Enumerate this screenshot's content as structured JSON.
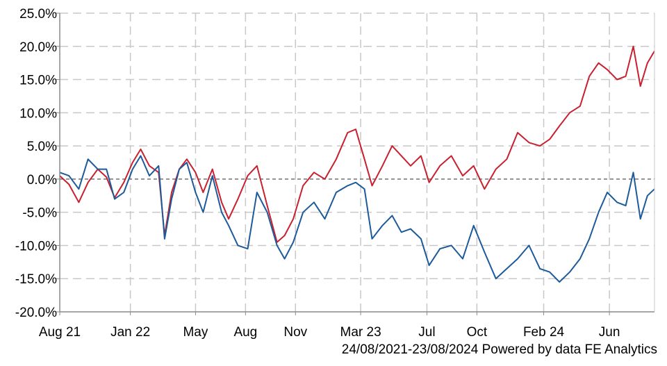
{
  "chart_data": {
    "type": "line",
    "title": "",
    "xlabel": "",
    "ylabel": "",
    "x_range": [
      "2021-08-24",
      "2024-08-23"
    ],
    "ylim": [
      -20,
      25
    ],
    "y_ticks": [
      "25.0%",
      "20.0%",
      "15.0%",
      "10.0%",
      "5.0%",
      "0.0%",
      "-5.0%",
      "-10.0%",
      "-15.0%",
      "-20.0%"
    ],
    "y_tick_values": [
      25,
      20,
      15,
      10,
      5,
      0,
      -5,
      -10,
      -15,
      -20
    ],
    "x_ticks": [
      {
        "label": "Aug 21",
        "date": "2021-08-24"
      },
      {
        "label": "Jan 22",
        "date": "2022-01-01"
      },
      {
        "label": "May",
        "date": "2022-05-01"
      },
      {
        "label": "Aug",
        "date": "2022-08-01"
      },
      {
        "label": "Nov",
        "date": "2022-11-01"
      },
      {
        "label": "Mar 23",
        "date": "2023-03-01"
      },
      {
        "label": "Jul",
        "date": "2023-07-01"
      },
      {
        "label": "Oct",
        "date": "2023-10-01"
      },
      {
        "label": "Feb 24",
        "date": "2024-02-01"
      },
      {
        "label": "Jun",
        "date": "2024-06-01"
      }
    ],
    "grid": true,
    "zero_line": true,
    "series": [
      {
        "color": "#c8202f",
        "points": [
          [
            "2021-08-24",
            0.5
          ],
          [
            "2021-09-10",
            -0.8
          ],
          [
            "2021-09-28",
            -3.5
          ],
          [
            "2021-10-15",
            -0.5
          ],
          [
            "2021-11-02",
            1.5
          ],
          [
            "2021-11-18",
            0.3
          ],
          [
            "2021-12-03",
            -2.8
          ],
          [
            "2021-12-20",
            -0.5
          ],
          [
            "2022-01-05",
            2.5
          ],
          [
            "2022-01-20",
            4.5
          ],
          [
            "2022-02-05",
            2.0
          ],
          [
            "2022-02-22",
            1.0
          ],
          [
            "2022-03-05",
            -8.5
          ],
          [
            "2022-03-18",
            -2.0
          ],
          [
            "2022-04-01",
            1.5
          ],
          [
            "2022-04-15",
            3.0
          ],
          [
            "2022-05-01",
            1.0
          ],
          [
            "2022-05-15",
            -2.0
          ],
          [
            "2022-06-01",
            1.5
          ],
          [
            "2022-06-18",
            -3.5
          ],
          [
            "2022-07-01",
            -6.0
          ],
          [
            "2022-07-18",
            -3.0
          ],
          [
            "2022-08-05",
            0.5
          ],
          [
            "2022-08-22",
            2.0
          ],
          [
            "2022-09-10",
            -4.0
          ],
          [
            "2022-09-28",
            -9.5
          ],
          [
            "2022-10-12",
            -8.5
          ],
          [
            "2022-10-28",
            -6.0
          ],
          [
            "2022-11-15",
            -1.0
          ],
          [
            "2022-12-05",
            1.0
          ],
          [
            "2022-12-25",
            0.0
          ],
          [
            "2023-01-15",
            3.0
          ],
          [
            "2023-02-05",
            7.0
          ],
          [
            "2023-02-20",
            7.5
          ],
          [
            "2023-03-08",
            3.0
          ],
          [
            "2023-03-22",
            -1.0
          ],
          [
            "2023-04-10",
            2.0
          ],
          [
            "2023-04-28",
            5.0
          ],
          [
            "2023-05-15",
            3.5
          ],
          [
            "2023-06-01",
            2.0
          ],
          [
            "2023-06-20",
            3.5
          ],
          [
            "2023-07-05",
            -0.5
          ],
          [
            "2023-07-25",
            2.0
          ],
          [
            "2023-08-15",
            3.5
          ],
          [
            "2023-09-05",
            0.5
          ],
          [
            "2023-09-25",
            2.0
          ],
          [
            "2023-10-15",
            -1.5
          ],
          [
            "2023-11-05",
            1.5
          ],
          [
            "2023-11-25",
            3.0
          ],
          [
            "2023-12-15",
            7.0
          ],
          [
            "2024-01-05",
            5.5
          ],
          [
            "2024-01-25",
            5.0
          ],
          [
            "2024-02-12",
            6.0
          ],
          [
            "2024-03-01",
            8.0
          ],
          [
            "2024-03-20",
            10.0
          ],
          [
            "2024-04-08",
            11.0
          ],
          [
            "2024-04-25",
            15.5
          ],
          [
            "2024-05-12",
            17.5
          ],
          [
            "2024-05-28",
            16.5
          ],
          [
            "2024-06-15",
            15.0
          ],
          [
            "2024-07-01",
            15.5
          ],
          [
            "2024-07-15",
            20.0
          ],
          [
            "2024-07-28",
            14.0
          ],
          [
            "2024-08-10",
            17.5
          ],
          [
            "2024-08-23",
            19.3
          ]
        ]
      },
      {
        "color": "#1c5a9a",
        "points": [
          [
            "2021-08-24",
            1.0
          ],
          [
            "2021-09-10",
            0.5
          ],
          [
            "2021-09-28",
            -1.5
          ],
          [
            "2021-10-15",
            3.0
          ],
          [
            "2021-11-02",
            1.5
          ],
          [
            "2021-11-18",
            1.5
          ],
          [
            "2021-12-03",
            -3.0
          ],
          [
            "2021-12-20",
            -2.0
          ],
          [
            "2022-01-05",
            1.5
          ],
          [
            "2022-01-20",
            3.5
          ],
          [
            "2022-02-05",
            0.5
          ],
          [
            "2022-02-22",
            2.0
          ],
          [
            "2022-03-05",
            -9.0
          ],
          [
            "2022-03-18",
            -3.0
          ],
          [
            "2022-04-01",
            1.5
          ],
          [
            "2022-04-15",
            2.5
          ],
          [
            "2022-05-01",
            -2.0
          ],
          [
            "2022-05-15",
            -5.0
          ],
          [
            "2022-06-01",
            0.5
          ],
          [
            "2022-06-18",
            -5.0
          ],
          [
            "2022-07-01",
            -7.0
          ],
          [
            "2022-07-18",
            -10.0
          ],
          [
            "2022-08-05",
            -10.5
          ],
          [
            "2022-08-22",
            -2.0
          ],
          [
            "2022-09-10",
            -5.0
          ],
          [
            "2022-09-28",
            -10.0
          ],
          [
            "2022-10-12",
            -12.0
          ],
          [
            "2022-10-28",
            -9.5
          ],
          [
            "2022-11-15",
            -5.0
          ],
          [
            "2022-12-05",
            -3.5
          ],
          [
            "2022-12-25",
            -6.0
          ],
          [
            "2023-01-15",
            -2.0
          ],
          [
            "2023-02-05",
            -1.0
          ],
          [
            "2023-02-20",
            -0.5
          ],
          [
            "2023-03-08",
            -1.5
          ],
          [
            "2023-03-22",
            -9.0
          ],
          [
            "2023-04-10",
            -7.0
          ],
          [
            "2023-04-28",
            -5.5
          ],
          [
            "2023-05-15",
            -8.0
          ],
          [
            "2023-06-01",
            -7.5
          ],
          [
            "2023-06-20",
            -9.0
          ],
          [
            "2023-07-05",
            -13.0
          ],
          [
            "2023-07-25",
            -10.5
          ],
          [
            "2023-08-15",
            -10.0
          ],
          [
            "2023-09-05",
            -12.0
          ],
          [
            "2023-09-25",
            -7.0
          ],
          [
            "2023-10-15",
            -11.0
          ],
          [
            "2023-11-05",
            -15.0
          ],
          [
            "2023-11-25",
            -13.5
          ],
          [
            "2023-12-15",
            -12.0
          ],
          [
            "2024-01-05",
            -10.0
          ],
          [
            "2024-01-25",
            -13.5
          ],
          [
            "2024-02-12",
            -14.0
          ],
          [
            "2024-03-01",
            -15.5
          ],
          [
            "2024-03-20",
            -14.0
          ],
          [
            "2024-04-08",
            -12.0
          ],
          [
            "2024-04-25",
            -9.0
          ],
          [
            "2024-05-12",
            -5.0
          ],
          [
            "2024-05-28",
            -2.0
          ],
          [
            "2024-06-15",
            -3.5
          ],
          [
            "2024-07-01",
            -4.0
          ],
          [
            "2024-07-15",
            1.0
          ],
          [
            "2024-07-28",
            -6.0
          ],
          [
            "2024-08-10",
            -2.5
          ],
          [
            "2024-08-23",
            -1.5
          ]
        ]
      }
    ]
  },
  "footer": {
    "text": "24/08/2021-23/08/2024 Powered by data FE Analytics"
  }
}
